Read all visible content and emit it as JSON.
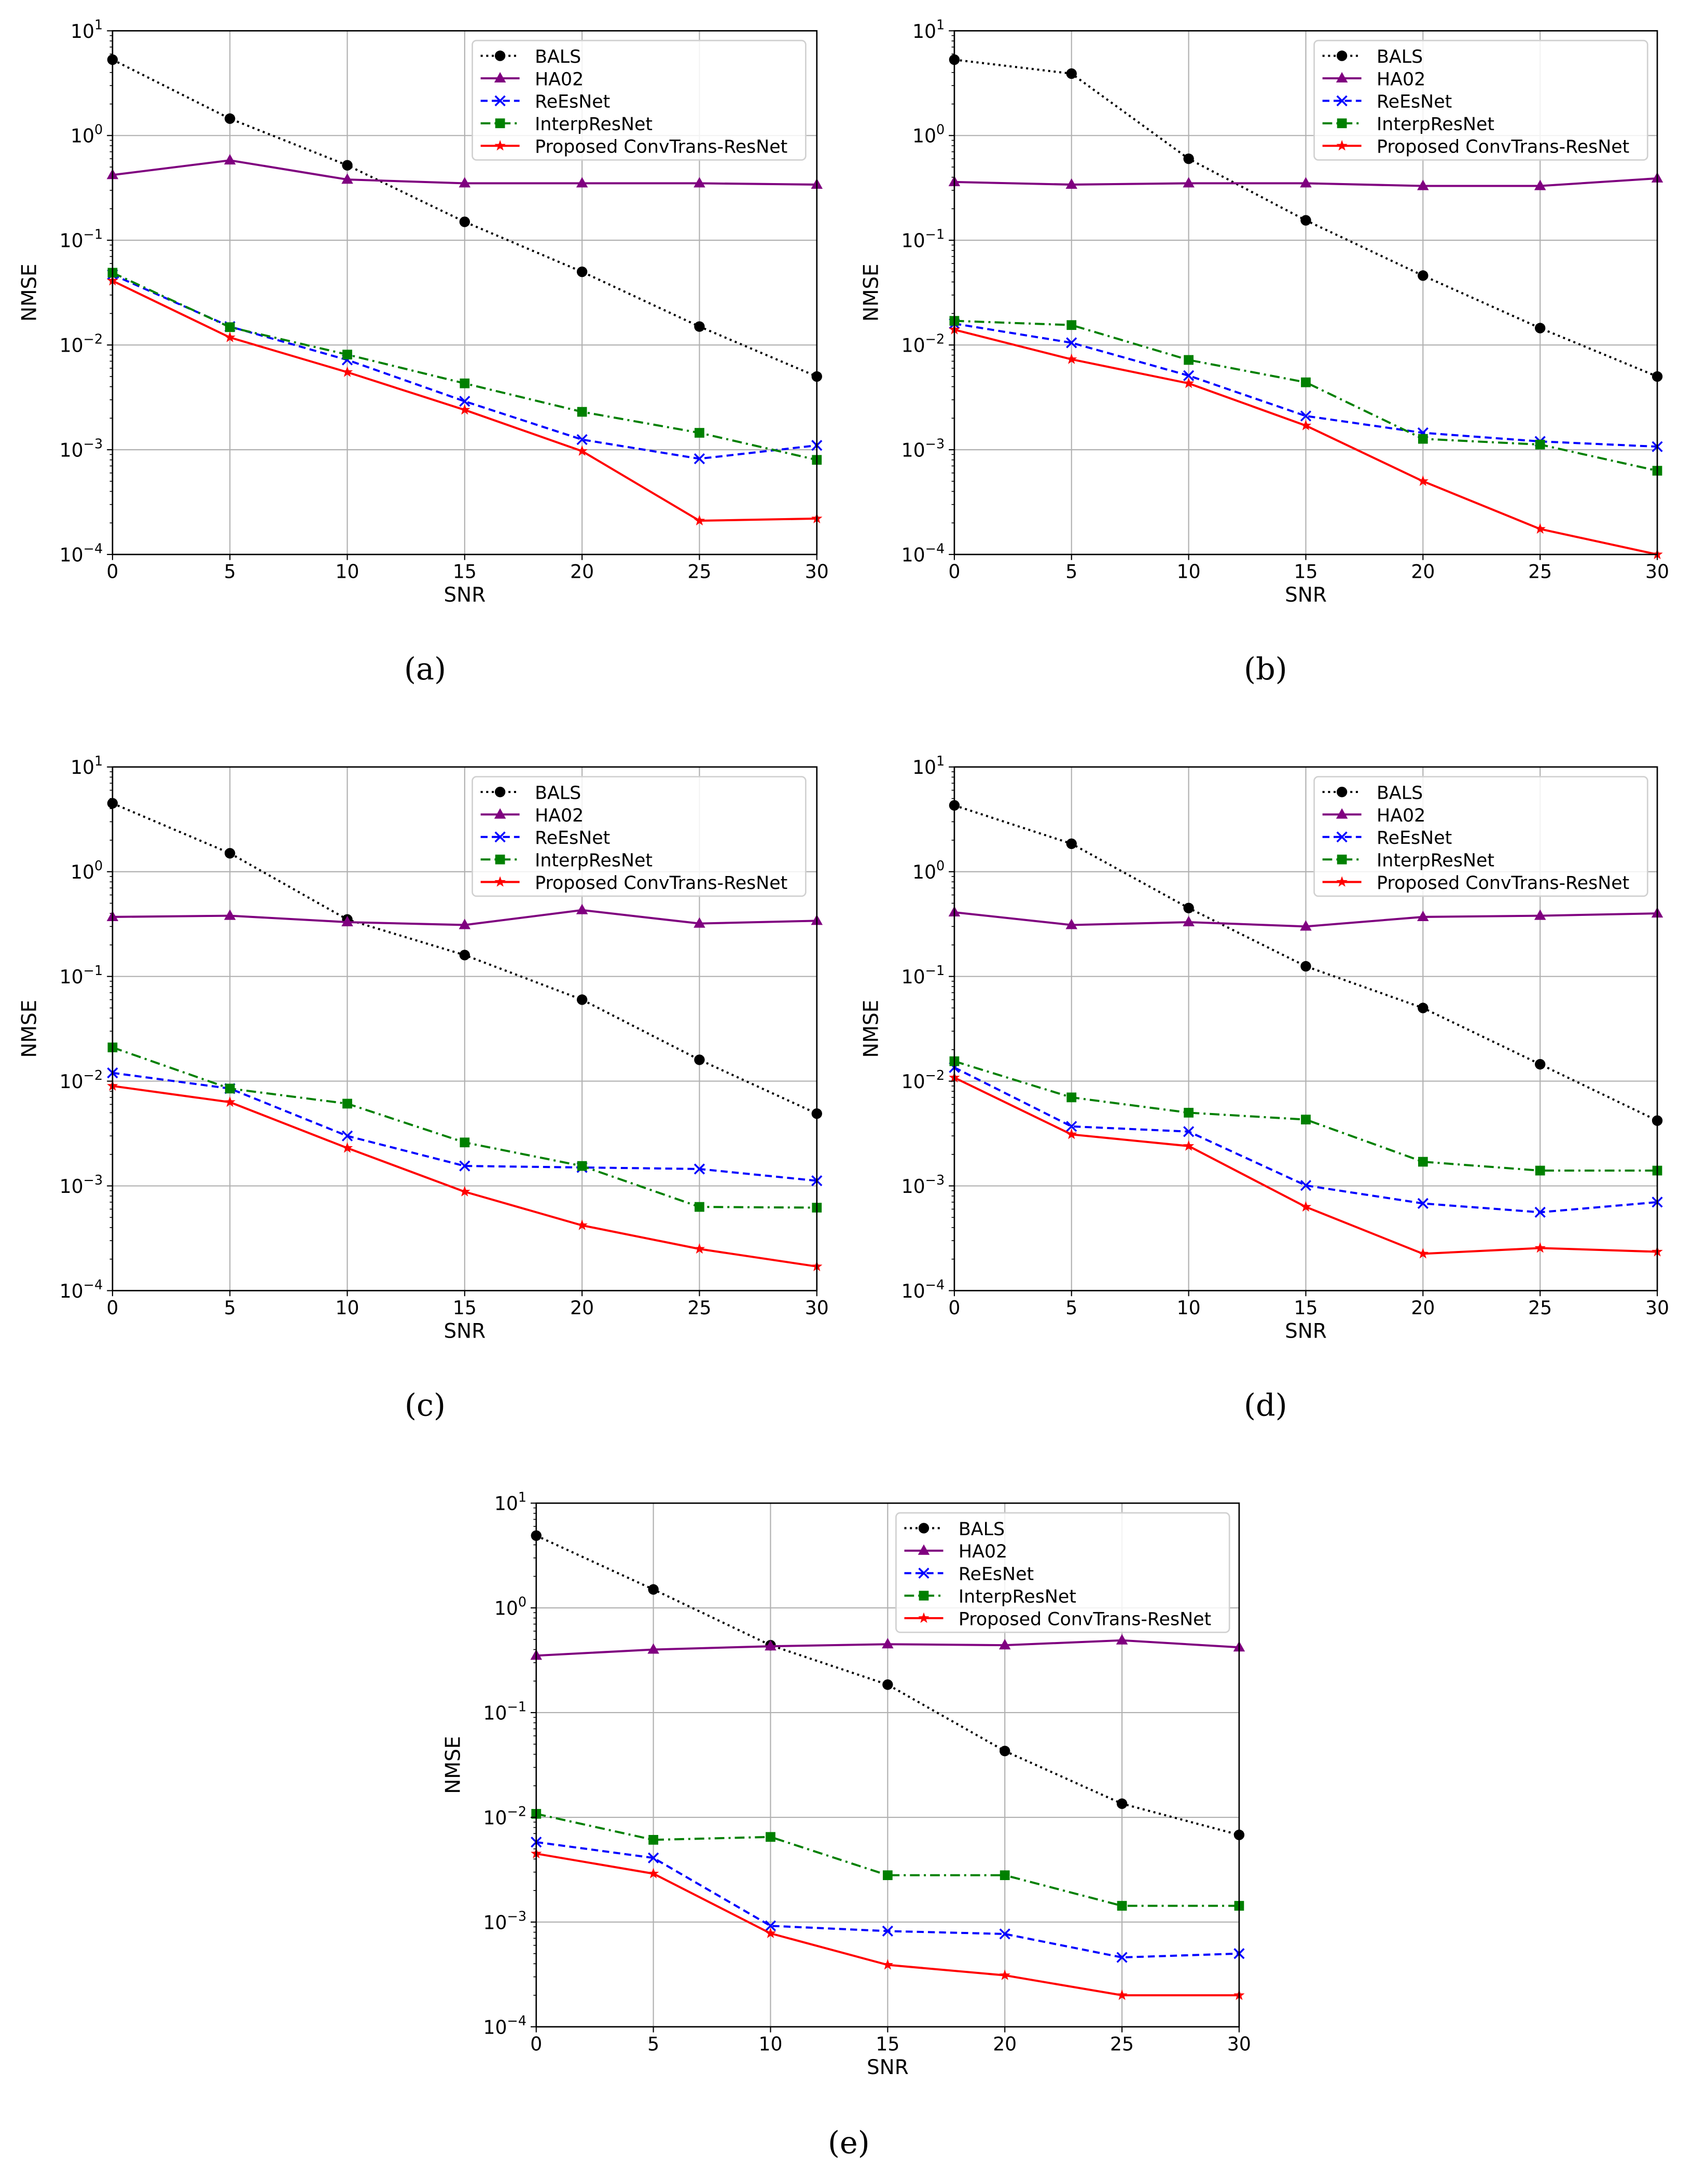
{
  "chart_data": [
    {
      "type": "line",
      "panel_label": "(a)",
      "xlabel": "SNR",
      "ylabel": "NMSE",
      "yscale": "log",
      "x": [
        0,
        5,
        10,
        15,
        20,
        25,
        30
      ],
      "xlim": [
        0,
        30
      ],
      "ylim": [
        0.0001,
        10
      ],
      "xticks": [
        0,
        5,
        10,
        15,
        20,
        25,
        30
      ],
      "ytick_exponents": [
        1,
        0,
        -1,
        -2,
        -3,
        -4
      ],
      "grid": true,
      "legend_position": "top-right",
      "series": [
        {
          "name": "BALS",
          "values": [
            5.3,
            1.45,
            0.52,
            0.15,
            0.05,
            0.015,
            0.005
          ]
        },
        {
          "name": "HA02",
          "values": [
            0.42,
            0.58,
            0.38,
            0.35,
            0.35,
            0.35,
            0.34
          ]
        },
        {
          "name": "ReEsNet",
          "values": [
            0.047,
            0.015,
            0.0072,
            0.0029,
            0.00125,
            0.00082,
            0.0011
          ]
        },
        {
          "name": "InterpResNet",
          "values": [
            0.049,
            0.0148,
            0.0081,
            0.0043,
            0.0023,
            0.00145,
            0.0008
          ]
        },
        {
          "name": "Proposed ConvTrans-ResNet",
          "values": [
            0.041,
            0.0118,
            0.0055,
            0.0024,
            0.00097,
            0.00021,
            0.00022
          ]
        }
      ]
    },
    {
      "type": "line",
      "panel_label": "(b)",
      "xlabel": "SNR",
      "ylabel": "NMSE",
      "yscale": "log",
      "x": [
        0,
        5,
        10,
        15,
        20,
        25,
        30
      ],
      "xlim": [
        0,
        30
      ],
      "ylim": [
        0.0001,
        10
      ],
      "xticks": [
        0,
        5,
        10,
        15,
        20,
        25,
        30
      ],
      "ytick_exponents": [
        1,
        0,
        -1,
        -2,
        -3,
        -4
      ],
      "grid": true,
      "legend_position": "top-right",
      "series": [
        {
          "name": "BALS",
          "values": [
            5.3,
            3.9,
            0.6,
            0.155,
            0.046,
            0.0145,
            0.005
          ]
        },
        {
          "name": "HA02",
          "values": [
            0.36,
            0.34,
            0.35,
            0.35,
            0.33,
            0.33,
            0.39
          ]
        },
        {
          "name": "ReEsNet",
          "values": [
            0.016,
            0.0105,
            0.0051,
            0.0021,
            0.00145,
            0.0012,
            0.00107
          ]
        },
        {
          "name": "InterpResNet",
          "values": [
            0.017,
            0.0155,
            0.0072,
            0.0044,
            0.00127,
            0.00112,
            0.00063
          ]
        },
        {
          "name": "Proposed ConvTrans-ResNet",
          "values": [
            0.014,
            0.0073,
            0.0043,
            0.0017,
            0.0005,
            0.000175,
            0.0001
          ]
        }
      ]
    },
    {
      "type": "line",
      "panel_label": "(c)",
      "xlabel": "SNR",
      "ylabel": "NMSE",
      "yscale": "log",
      "x": [
        0,
        5,
        10,
        15,
        20,
        25,
        30
      ],
      "xlim": [
        0,
        30
      ],
      "ylim": [
        0.0001,
        10
      ],
      "xticks": [
        0,
        5,
        10,
        15,
        20,
        25,
        30
      ],
      "ytick_exponents": [
        1,
        0,
        -1,
        -2,
        -3,
        -4
      ],
      "grid": true,
      "legend_position": "top-right",
      "series": [
        {
          "name": "BALS",
          "values": [
            4.5,
            1.5,
            0.35,
            0.16,
            0.06,
            0.016,
            0.0049
          ]
        },
        {
          "name": "HA02",
          "values": [
            0.37,
            0.38,
            0.33,
            0.31,
            0.43,
            0.32,
            0.34
          ]
        },
        {
          "name": "ReEsNet",
          "values": [
            0.012,
            0.0085,
            0.003,
            0.00155,
            0.0015,
            0.00145,
            0.00112
          ]
        },
        {
          "name": "InterpResNet",
          "values": [
            0.021,
            0.0085,
            0.0061,
            0.0026,
            0.00155,
            0.00063,
            0.00062
          ]
        },
        {
          "name": "Proposed ConvTrans-ResNet",
          "values": [
            0.009,
            0.0063,
            0.0023,
            0.00088,
            0.00042,
            0.00025,
            0.00017
          ]
        }
      ]
    },
    {
      "type": "line",
      "panel_label": "(d)",
      "xlabel": "SNR",
      "ylabel": "NMSE",
      "yscale": "log",
      "x": [
        0,
        5,
        10,
        15,
        20,
        25,
        30
      ],
      "xlim": [
        0,
        30
      ],
      "ylim": [
        0.0001,
        10
      ],
      "xticks": [
        0,
        5,
        10,
        15,
        20,
        25,
        30
      ],
      "ytick_exponents": [
        1,
        0,
        -1,
        -2,
        -3,
        -4
      ],
      "grid": true,
      "legend_position": "top-right",
      "series": [
        {
          "name": "BALS",
          "values": [
            4.3,
            1.85,
            0.45,
            0.125,
            0.05,
            0.0145,
            0.0042
          ]
        },
        {
          "name": "HA02",
          "values": [
            0.41,
            0.31,
            0.33,
            0.3,
            0.37,
            0.38,
            0.4
          ]
        },
        {
          "name": "ReEsNet",
          "values": [
            0.0135,
            0.0037,
            0.0033,
            0.00101,
            0.00068,
            0.00056,
            0.0007
          ]
        },
        {
          "name": "InterpResNet",
          "values": [
            0.0155,
            0.007,
            0.005,
            0.0043,
            0.0017,
            0.0014,
            0.0014
          ]
        },
        {
          "name": "Proposed ConvTrans-ResNet",
          "values": [
            0.0108,
            0.0031,
            0.0024,
            0.00063,
            0.000225,
            0.000255,
            0.000235
          ]
        }
      ]
    },
    {
      "type": "line",
      "panel_label": "(e)",
      "xlabel": "SNR",
      "ylabel": "NMSE",
      "yscale": "log",
      "x": [
        0,
        5,
        10,
        15,
        20,
        25,
        30
      ],
      "xlim": [
        0,
        30
      ],
      "ylim": [
        0.0001,
        10
      ],
      "xticks": [
        0,
        5,
        10,
        15,
        20,
        25,
        30
      ],
      "ytick_exponents": [
        1,
        0,
        -1,
        -2,
        -3,
        -4
      ],
      "grid": true,
      "legend_position": "top-right",
      "series": [
        {
          "name": "BALS",
          "values": [
            4.9,
            1.5,
            0.44,
            0.185,
            0.043,
            0.0135,
            0.0068
          ]
        },
        {
          "name": "HA02",
          "values": [
            0.35,
            0.4,
            0.43,
            0.45,
            0.44,
            0.49,
            0.42
          ]
        },
        {
          "name": "ReEsNet",
          "values": [
            0.0058,
            0.0041,
            0.00092,
            0.00082,
            0.00077,
            0.00046,
            0.0005
          ]
        },
        {
          "name": "InterpResNet",
          "values": [
            0.0108,
            0.0061,
            0.0065,
            0.0028,
            0.0028,
            0.00143,
            0.00143
          ]
        },
        {
          "name": "Proposed ConvTrans-ResNet",
          "values": [
            0.0045,
            0.0029,
            0.00078,
            0.00039,
            0.00031,
            0.0002,
            0.0002
          ]
        }
      ]
    }
  ],
  "series_styles": [
    {
      "color": "#000000",
      "dash": "dotted",
      "marker": "circle"
    },
    {
      "color": "#800080",
      "dash": "solid",
      "marker": "triangle"
    },
    {
      "color": "#0000ff",
      "dash": "dashed",
      "marker": "x"
    },
    {
      "color": "#008000",
      "dash": "dashdot",
      "marker": "square"
    },
    {
      "color": "#ff0000",
      "dash": "solid",
      "marker": "star"
    }
  ]
}
